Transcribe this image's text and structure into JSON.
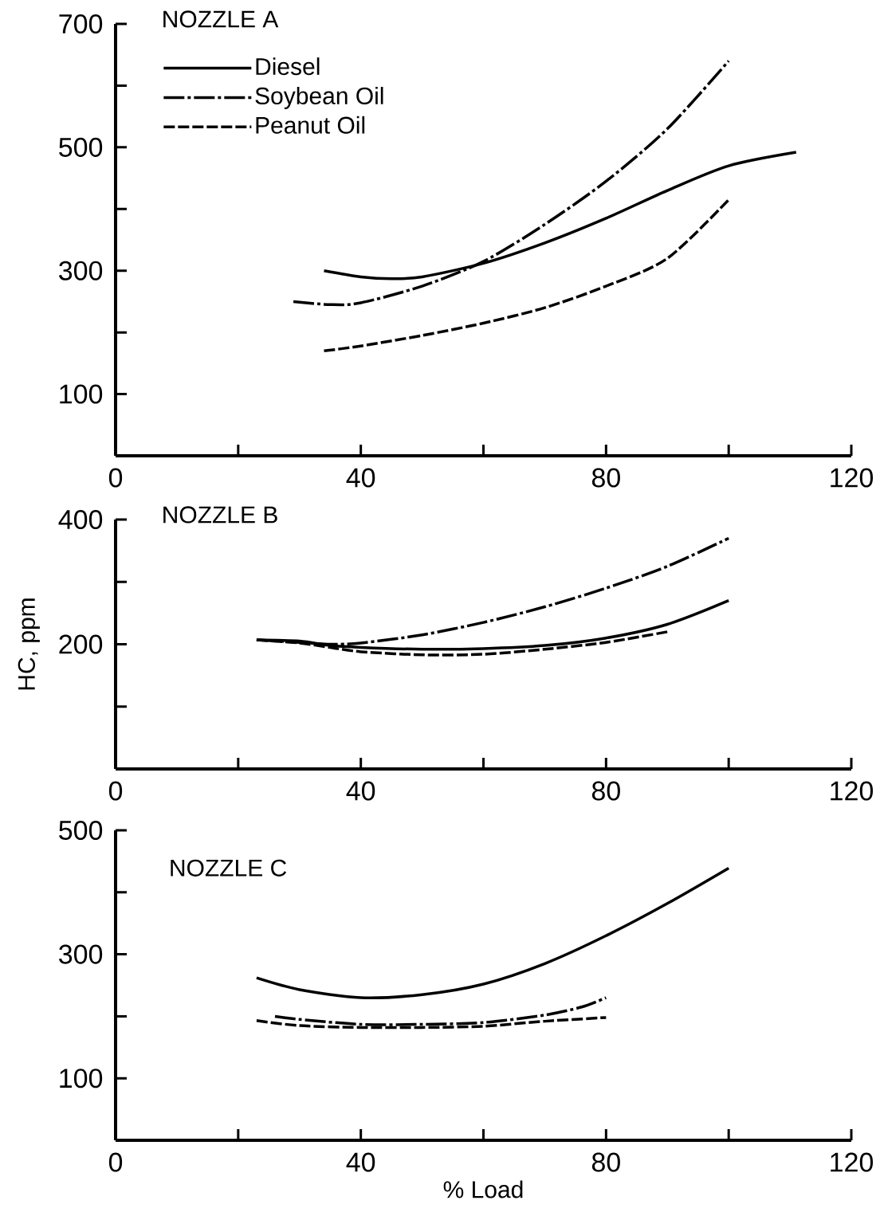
{
  "chart_data": [
    {
      "type": "line",
      "title": "NOZZLE A",
      "legend": "top left",
      "xlim": [
        0,
        120
      ],
      "ylim": [
        0,
        700
      ],
      "xticks": [
        0,
        {
          "value": 20,
          "label": null
        },
        40,
        {
          "value": 60,
          "label": null
        },
        80,
        {
          "value": 100,
          "label": null
        },
        120
      ],
      "yticks": [
        {
          "value": 0,
          "label": null
        },
        100,
        {
          "value": 200,
          "label": null
        },
        300,
        {
          "value": 400,
          "label": null
        },
        500,
        {
          "value": 600,
          "label": null
        },
        700
      ],
      "series": [
        {
          "name": "Diesel",
          "color": "#000000",
          "line_style": "solid",
          "x": [
            34,
            40,
            45,
            50,
            60,
            70,
            80,
            90,
            100,
            111
          ],
          "values": [
            300,
            290,
            287,
            290,
            312,
            345,
            385,
            430,
            470,
            492
          ]
        },
        {
          "name": "Soybean Oil",
          "color": "#000000",
          "line_style": "dashdot",
          "x": [
            29,
            35,
            40,
            50,
            60,
            70,
            80,
            90,
            100
          ],
          "values": [
            250,
            245,
            248,
            275,
            315,
            375,
            445,
            530,
            640
          ]
        },
        {
          "name": "Peanut Oil",
          "color": "#000000",
          "line_style": "dashed",
          "x": [
            34,
            40,
            50,
            60,
            70,
            80,
            90,
            100
          ],
          "values": [
            170,
            178,
            195,
            215,
            240,
            275,
            320,
            415
          ]
        }
      ]
    },
    {
      "type": "line",
      "title": "NOZZLE B",
      "ylabel": "HC, ppm",
      "xlim": [
        0,
        120
      ],
      "ylim": [
        0,
        400
      ],
      "xticks": [
        0,
        {
          "value": 20,
          "label": null
        },
        40,
        {
          "value": 60,
          "label": null
        },
        80,
        {
          "value": 100,
          "label": null
        },
        120
      ],
      "yticks": [
        {
          "value": 0,
          "label": null
        },
        {
          "value": 100,
          "label": null
        },
        200,
        {
          "value": 300,
          "label": null
        },
        400
      ],
      "series": [
        {
          "color": "#000000",
          "line_style": "solid",
          "x": [
            23,
            30,
            35,
            40,
            50,
            60,
            70,
            80,
            90,
            100
          ],
          "values": [
            207,
            205,
            198,
            195,
            192,
            193,
            198,
            210,
            232,
            270
          ]
        },
        {
          "color": "#000000",
          "line_style": "dashdot",
          "x": [
            23,
            30,
            35,
            40,
            50,
            60,
            70,
            80,
            90,
            100
          ],
          "values": [
            207,
            203,
            200,
            202,
            215,
            235,
            260,
            290,
            325,
            370
          ]
        },
        {
          "color": "#000000",
          "line_style": "dashed",
          "x": [
            23,
            30,
            35,
            40,
            50,
            60,
            70,
            80,
            90
          ],
          "values": [
            207,
            202,
            195,
            188,
            183,
            184,
            192,
            203,
            220
          ]
        }
      ]
    },
    {
      "type": "line",
      "title": "NOZZLE C",
      "xlabel": "% Load",
      "xlim": [
        0,
        120
      ],
      "ylim": [
        0,
        500
      ],
      "xticks": [
        0,
        {
          "value": 20,
          "label": null
        },
        40,
        {
          "value": 60,
          "label": null
        },
        80,
        {
          "value": 100,
          "label": null
        },
        120
      ],
      "yticks": [
        {
          "value": 0,
          "label": null
        },
        100,
        {
          "value": 200,
          "label": null
        },
        300,
        {
          "value": 400,
          "label": null
        },
        500
      ],
      "series": [
        {
          "color": "#000000",
          "line_style": "solid",
          "x": [
            23,
            30,
            40,
            50,
            60,
            70,
            80,
            90,
            100
          ],
          "values": [
            262,
            243,
            230,
            235,
            252,
            285,
            330,
            382,
            439
          ]
        },
        {
          "color": "#000000",
          "line_style": "dashdot",
          "x": [
            26,
            30,
            40,
            50,
            60,
            70,
            76,
            80
          ],
          "values": [
            200,
            195,
            187,
            187,
            190,
            202,
            215,
            230
          ]
        },
        {
          "color": "#000000",
          "line_style": "dashed",
          "x": [
            23,
            30,
            40,
            50,
            60,
            70,
            80
          ],
          "values": [
            193,
            185,
            182,
            182,
            184,
            192,
            198
          ]
        }
      ]
    }
  ]
}
